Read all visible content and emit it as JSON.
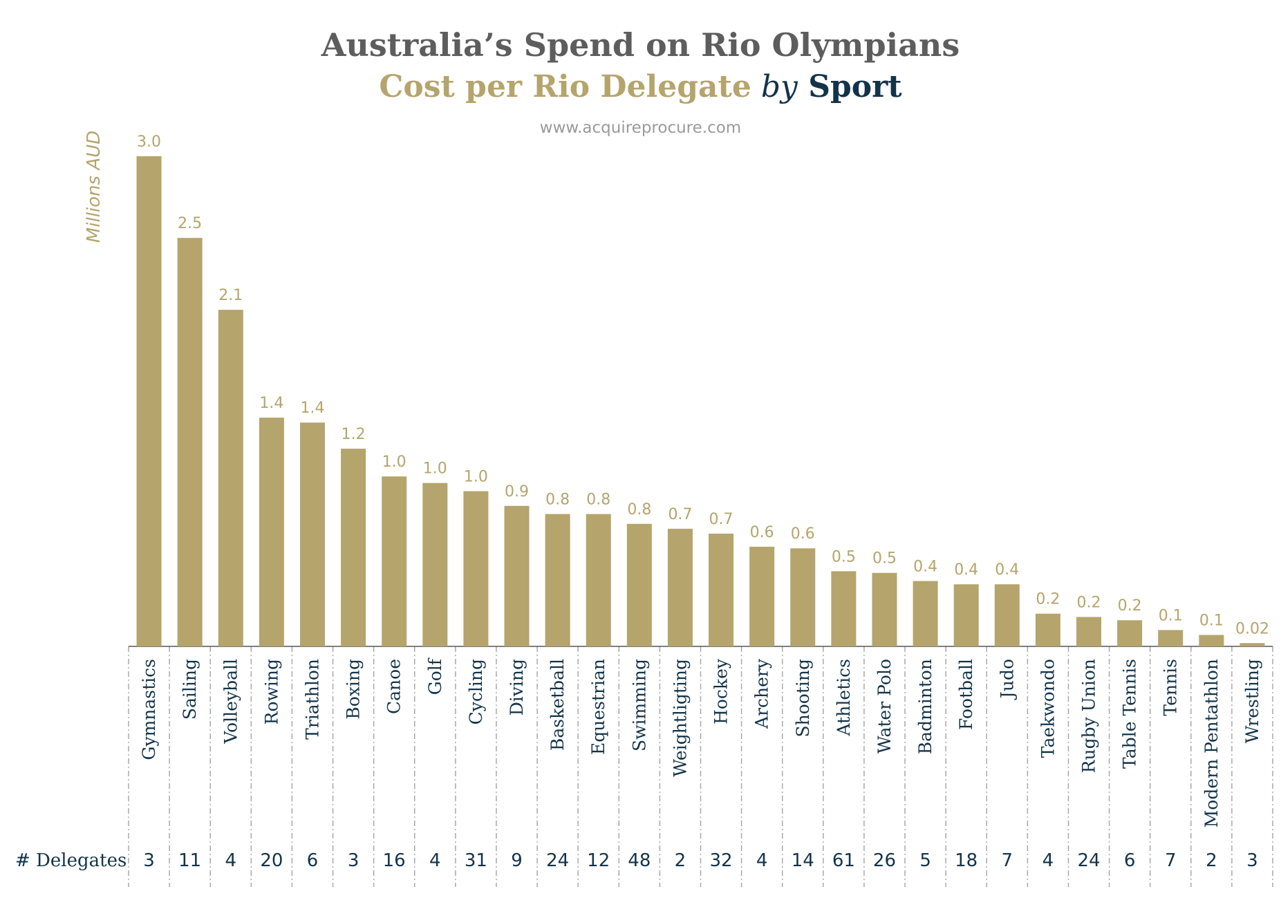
{
  "header": {
    "title": "Australia’s Spend on Rio Olympians",
    "subtitle_main": "Cost per Rio Delegate",
    "subtitle_by": "by",
    "subtitle_sport": "Sport",
    "source": "www.acquireprocure.com"
  },
  "colors": {
    "bar": "#b5a46b",
    "title": "#5d5d5d",
    "accent": "#12334a"
  },
  "chart_data": {
    "type": "bar",
    "title": "Australia’s Spend on Rio Olympians",
    "subtitle": "Cost per Rio Delegate by Sport",
    "ylabel": "Millions AUD",
    "ylim": [
      0,
      3.0
    ],
    "grid": false,
    "counts_label": "# Delegates",
    "categories": [
      "Gymnastics",
      "Sailing",
      "Volleyball",
      "Rowing",
      "Triathlon",
      "Boxing",
      "Canoe",
      "Golf",
      "Cycling",
      "Diving",
      "Basketball",
      "Equestrian",
      "Swimming",
      "Weightligting",
      "Hockey",
      "Archery",
      "Shooting",
      "Athletics",
      "Water Polo",
      "Badminton",
      "Football",
      "Judo",
      "Taekwondo",
      "Rugby Union",
      "Table Tennis",
      "Tennis",
      "Modern Pentathlon",
      "Wrestling"
    ],
    "values": [
      3.0,
      2.5,
      2.06,
      1.4,
      1.37,
      1.21,
      1.04,
      1.0,
      0.95,
      0.86,
      0.81,
      0.81,
      0.75,
      0.72,
      0.69,
      0.61,
      0.6,
      0.46,
      0.45,
      0.4,
      0.38,
      0.38,
      0.2,
      0.18,
      0.16,
      0.1,
      0.07,
      0.02
    ],
    "value_labels": [
      "3.0",
      "2.5",
      "2.1",
      "1.4",
      "1.4",
      "1.2",
      "1.0",
      "1.0",
      "1.0",
      "0.9",
      "0.8",
      "0.8",
      "0.8",
      "0.7",
      "0.7",
      "0.6",
      "0.6",
      "0.5",
      "0.5",
      "0.4",
      "0.4",
      "0.4",
      "0.2",
      "0.2",
      "0.2",
      "0.1",
      "0.1",
      "0.02"
    ],
    "delegates": [
      "3",
      "11",
      "4",
      "20",
      "6",
      "3",
      "16",
      "4",
      "31",
      "9",
      "24",
      "12",
      "48",
      "2",
      "32",
      "4",
      "14",
      "61",
      "26",
      "5",
      "18",
      "7",
      "4",
      "24",
      "6",
      "7",
      "2",
      "3"
    ]
  }
}
